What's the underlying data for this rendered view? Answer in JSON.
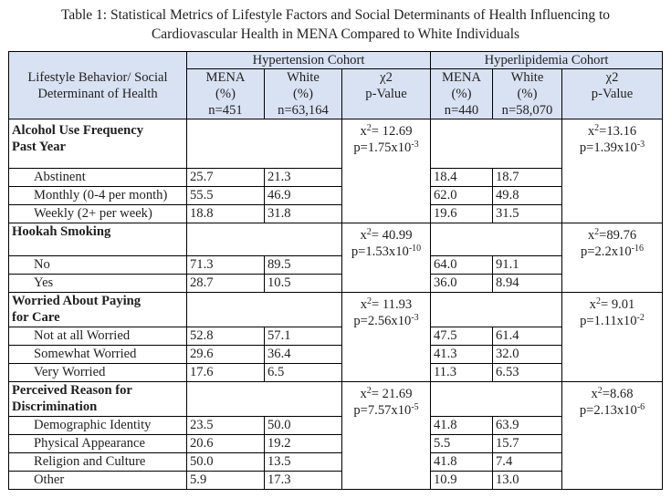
{
  "caption": {
    "line1": "Table 1: Statistical Metrics of Lifestyle Factors and Social Determinants of Health Influencing to",
    "line2": "Cardiovascular Health in MENA Compared to White Individuals"
  },
  "header": {
    "hypertension": "Hypertension Cohort",
    "hyperlipidemia": "Hyperlipidemia Cohort",
    "col_label_1": "Lifestyle Behavior/ Social",
    "col_label_2": "Determinant of Health",
    "mena": "MENA",
    "white": "White",
    "pct": "(%)",
    "chi": "χ2",
    "pval": "p-Value",
    "htn_mena_n": "n=451",
    "htn_white_n": "n=63,164",
    "hld_mena_n": "n=440",
    "hld_white_n": "n=58,070"
  },
  "sections": [
    {
      "title_1": "Alcohol Use Frequency",
      "title_2": "Past Year",
      "htn_chi": "x",
      "htn_chi_sup": "2",
      "htn_chi_val": "= 12.69",
      "htn_p": "p=1.75x10",
      "htn_p_exp": "-3",
      "hld_chi": "x",
      "hld_chi_sup": "2",
      "hld_chi_val": "=13.16",
      "hld_p": "p=1.39x10",
      "hld_p_exp": "-3",
      "rows": [
        {
          "label": "Abstinent",
          "htn_mena": "25.7",
          "htn_white": "21.3",
          "hld_mena": "18.4",
          "hld_white": "18.7"
        },
        {
          "label": "Monthly (0-4 per month)",
          "htn_mena": "55.5",
          "htn_white": "46.9",
          "hld_mena": "62.0",
          "hld_white": "49.8"
        },
        {
          "label": "Weekly (2+ per week)",
          "htn_mena": "18.8",
          "htn_white": "31.8",
          "hld_mena": "19.6",
          "hld_white": "31.5"
        }
      ]
    },
    {
      "title_1": "Hookah Smoking",
      "htn_chi": "x",
      "htn_chi_sup": "2",
      "htn_chi_val": "= 40.99",
      "htn_p": "p=1.53x10",
      "htn_p_exp": "-10",
      "hld_chi": "x",
      "hld_chi_sup": "2",
      "hld_chi_val": "=89.76",
      "hld_p": "p=2.2x10",
      "hld_p_exp": "-16",
      "rows": [
        {
          "label": "No",
          "htn_mena": "71.3",
          "htn_white": "89.5",
          "hld_mena": "64.0",
          "hld_white": "91.1"
        },
        {
          "label": "Yes",
          "htn_mena": "28.7",
          "htn_white": "10.5",
          "hld_mena": "36.0",
          "hld_white": "8.94"
        }
      ]
    },
    {
      "title_1": "Worried About Paying",
      "title_2": "for Care",
      "htn_chi": "x",
      "htn_chi_sup": "2",
      "htn_chi_val": "= 11.93",
      "htn_p": "p=2.56x10",
      "htn_p_exp": "-3",
      "hld_chi": "x",
      "hld_chi_sup": "2",
      "hld_chi_val": "= 9.01",
      "hld_p": "p=1.11x10",
      "hld_p_exp": "-2",
      "rows": [
        {
          "label": "Not at all Worried",
          "htn_mena": "52.8",
          "htn_white": "57.1",
          "hld_mena": "47.5",
          "hld_white": "61.4"
        },
        {
          "label": "Somewhat Worried",
          "htn_mena": "29.6",
          "htn_white": "36.4",
          "hld_mena": "41.3",
          "hld_white": "32.0"
        },
        {
          "label": "Very Worried",
          "htn_mena": "17.6",
          "htn_white": "6.5",
          "hld_mena": "11.3",
          "hld_white": "6.53"
        }
      ]
    },
    {
      "title_1": "Perceived Reason for",
      "title_2": "Discrimination",
      "htn_chi": "x",
      "htn_chi_sup": "2",
      "htn_chi_val": "= 21.69",
      "htn_p": "p=7.57x10",
      "htn_p_exp": "-5",
      "hld_chi": "x",
      "hld_chi_sup": "2",
      "hld_chi_val": "=8.68",
      "hld_p": "p=2.13x10",
      "hld_p_exp": "-6",
      "rows": [
        {
          "label": "Demographic Identity",
          "htn_mena": "23.5",
          "htn_white": "50.0",
          "hld_mena": "41.8",
          "hld_white": "63.9"
        },
        {
          "label": "Physical Appearance",
          "htn_mena": "20.6",
          "htn_white": "19.2",
          "hld_mena": "5.5",
          "hld_white": "15.7"
        },
        {
          "label": "Religion and Culture",
          "htn_mena": "50.0",
          "htn_white": "13.5",
          "hld_mena": "41.8",
          "hld_white": "7.4"
        },
        {
          "label": "Other",
          "htn_mena": "5.9",
          "htn_white": "17.3",
          "hld_mena": "10.9",
          "hld_white": "13.0"
        }
      ]
    }
  ]
}
